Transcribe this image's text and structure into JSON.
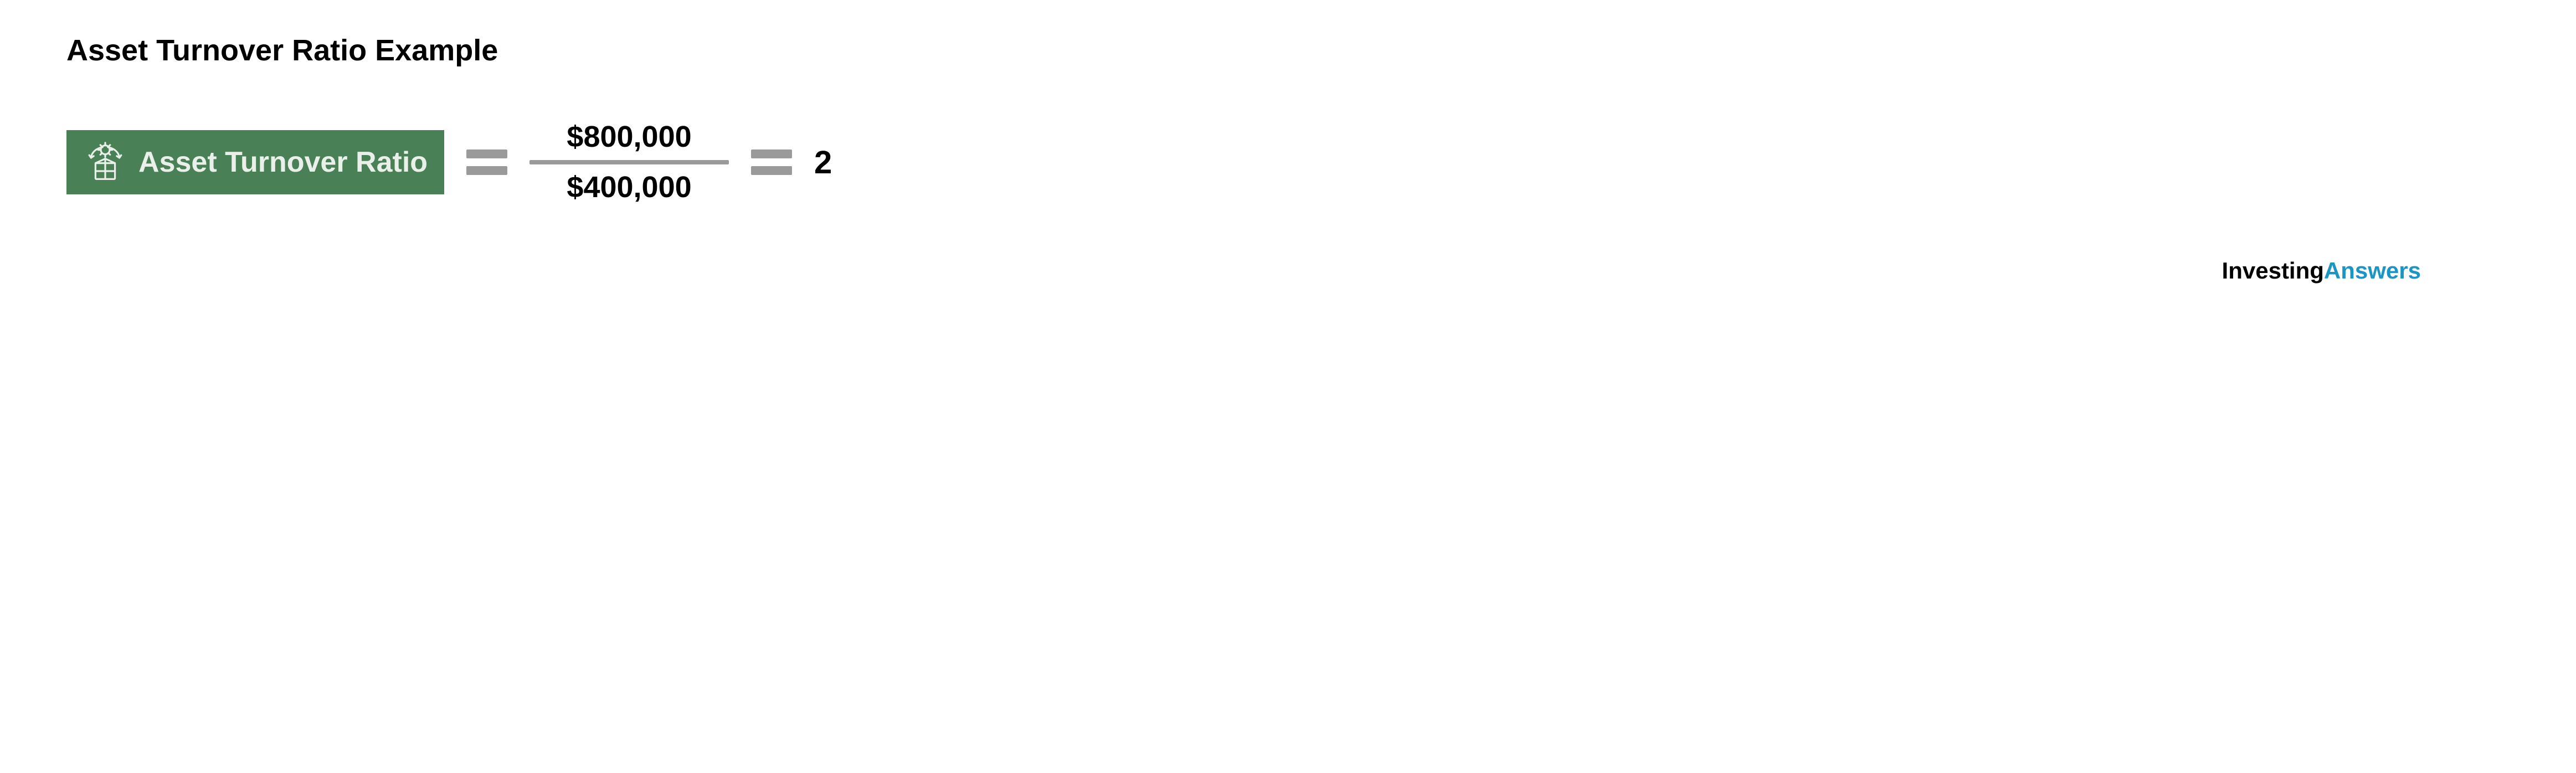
{
  "title": {
    "text": "Asset Turnover Ratio Example",
    "fontsize": 54,
    "color": "#000000"
  },
  "formula": {
    "badge": {
      "label": "Asset Turnover Ratio",
      "bg_color": "#4a8055",
      "text_color": "#e9efe9",
      "fontsize": 52,
      "icon": "process-box-icon",
      "icon_size": 80,
      "icon_color": "#e9efe9"
    },
    "equals_color": "#9a9a9a",
    "equals_bar_width": 74,
    "fraction": {
      "numerator": "$800,000",
      "denominator": "$400,000",
      "fontsize": 54,
      "color": "#000000",
      "line_color": "#9a9a9a",
      "line_width": 360
    },
    "result": {
      "value": "2",
      "fontsize": 58,
      "color": "#000000"
    }
  },
  "branding": {
    "part1": "Investing",
    "part1_color": "#000000",
    "part2": "Answers",
    "part2_color": "#1c95c4",
    "fontsize": 42
  }
}
